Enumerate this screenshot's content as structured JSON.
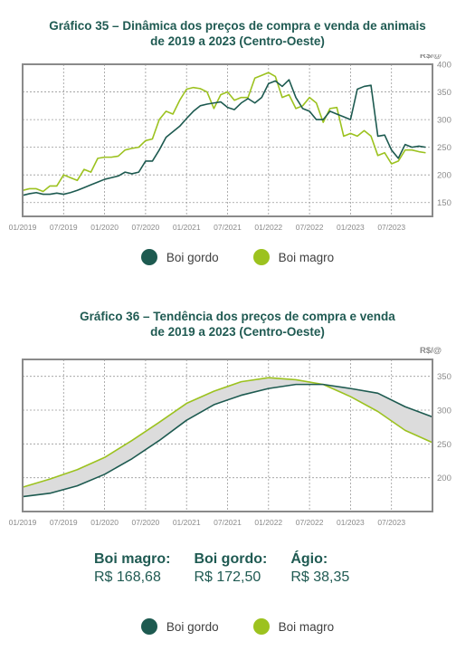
{
  "colors": {
    "gordo": "#1d5a50",
    "magro": "#9cc21f",
    "band": "#dcdcdc",
    "frame": "#8a8a8a",
    "grid": "#9a9a9a",
    "title": "#1f5a52"
  },
  "chart1": {
    "title_line1": "Gráfico 35 – Dinâmica dos preços de compra e venda de animais",
    "title_line2": "de 2019 a 2023 (Centro-Oeste)",
    "unit": "R$/@"
  },
  "chart2": {
    "title_line1": "Gráfico 36 – Tendência dos preços de compra e venda",
    "title_line2": "de 2019 a 2023 (Centro-Oeste)",
    "unit": "R$/@"
  },
  "legend": {
    "gordo": "Boi gordo",
    "magro": "Boi magro"
  },
  "summary": {
    "magro_label": "Boi magro:",
    "magro_value": "R$ 168,68",
    "gordo_label": "Boi gordo:",
    "gordo_value": "R$ 172,50",
    "agio_label": "Ágio:",
    "agio_value": "R$ 38,35"
  },
  "chart_data": [
    {
      "type": "line",
      "title": "Gráfico 35 – Dinâmica dos preços de compra e venda de animais de 2019 a 2023 (Centro-Oeste)",
      "ylabel": "R$/@",
      "ylim": [
        125,
        400
      ],
      "yticks": [
        150,
        200,
        250,
        300,
        350,
        400
      ],
      "xlim": [
        0,
        60
      ],
      "xticks": [
        0,
        6,
        12,
        18,
        24,
        30,
        36,
        42,
        48,
        54
      ],
      "xtick_labels": [
        "01/2019",
        "07/2019",
        "01/2020",
        "07/2020",
        "01/2021",
        "07/2021",
        "01/2022",
        "07/2022",
        "01/2023",
        "07/2023"
      ],
      "grid": true,
      "series": [
        {
          "name": "Boi gordo",
          "color": "#1d5a50",
          "x": [
            0,
            1,
            2,
            3,
            4,
            5,
            6,
            7,
            8,
            9,
            10,
            11,
            12,
            13,
            14,
            15,
            16,
            17,
            18,
            19,
            20,
            21,
            22,
            23,
            24,
            25,
            26,
            27,
            28,
            29,
            30,
            31,
            32,
            33,
            34,
            35,
            36,
            37,
            38,
            39,
            40,
            41,
            42,
            43,
            44,
            45,
            46,
            47,
            48,
            49,
            50,
            51,
            52,
            53,
            54,
            55,
            56,
            57,
            58,
            59
          ],
          "y": [
            163,
            166,
            168,
            165,
            165,
            167,
            165,
            168,
            172,
            177,
            182,
            187,
            192,
            195,
            198,
            205,
            202,
            205,
            225,
            225,
            245,
            268,
            278,
            288,
            302,
            315,
            325,
            328,
            330,
            332,
            322,
            318,
            330,
            338,
            330,
            340,
            365,
            370,
            360,
            372,
            340,
            320,
            315,
            300,
            300,
            315,
            310,
            305,
            300,
            355,
            360,
            362,
            270,
            272,
            245,
            230,
            255,
            250,
            252,
            250
          ]
        },
        {
          "name": "Boi magro",
          "color": "#9cc21f",
          "x": [
            0,
            1,
            2,
            3,
            4,
            5,
            6,
            7,
            8,
            9,
            10,
            11,
            12,
            13,
            14,
            15,
            16,
            17,
            18,
            19,
            20,
            21,
            22,
            23,
            24,
            25,
            26,
            27,
            28,
            29,
            30,
            31,
            32,
            33,
            34,
            35,
            36,
            37,
            38,
            39,
            40,
            41,
            42,
            43,
            44,
            45,
            46,
            47,
            48,
            49,
            50,
            51,
            52,
            53,
            54,
            55,
            56,
            57,
            58,
            59
          ],
          "y": [
            172,
            175,
            175,
            170,
            180,
            180,
            200,
            195,
            190,
            210,
            205,
            230,
            232,
            232,
            234,
            245,
            248,
            250,
            262,
            265,
            300,
            315,
            310,
            335,
            355,
            358,
            356,
            350,
            320,
            345,
            350,
            335,
            340,
            340,
            375,
            380,
            385,
            378,
            340,
            345,
            320,
            325,
            340,
            330,
            295,
            320,
            322,
            270,
            275,
            270,
            280,
            270,
            235,
            240,
            220,
            225,
            245,
            245,
            242,
            240
          ]
        }
      ]
    },
    {
      "type": "line",
      "title": "Gráfico 36 – Tendência dos preços de compra e venda de 2019 a 2023 (Centro-Oeste)",
      "ylabel": "R$/@",
      "ylim": [
        150,
        375
      ],
      "yticks": [
        200,
        250,
        300,
        350
      ],
      "xlim": [
        0,
        60
      ],
      "xticks": [
        0,
        6,
        12,
        18,
        24,
        30,
        36,
        42,
        48,
        54
      ],
      "xtick_labels": [
        "01/2019",
        "07/2019",
        "01/2020",
        "07/2020",
        "01/2021",
        "07/2021",
        "01/2022",
        "07/2022",
        "01/2023",
        "07/2023"
      ],
      "grid": true,
      "shaded_between_series": true,
      "series": [
        {
          "name": "Boi gordo",
          "color": "#1d5a50",
          "x": [
            0,
            4,
            8,
            12,
            16,
            20,
            24,
            28,
            32,
            36,
            40,
            44,
            48,
            52,
            56,
            60
          ],
          "y": [
            172,
            177,
            188,
            205,
            228,
            255,
            285,
            308,
            322,
            332,
            338,
            338,
            332,
            325,
            305,
            290
          ]
        },
        {
          "name": "Boi magro",
          "color": "#9cc21f",
          "x": [
            0,
            4,
            8,
            12,
            16,
            20,
            24,
            28,
            32,
            36,
            40,
            44,
            48,
            52,
            56,
            60
          ],
          "y": [
            186,
            198,
            212,
            230,
            255,
            282,
            310,
            328,
            342,
            348,
            345,
            338,
            320,
            298,
            270,
            252
          ]
        }
      ]
    }
  ]
}
